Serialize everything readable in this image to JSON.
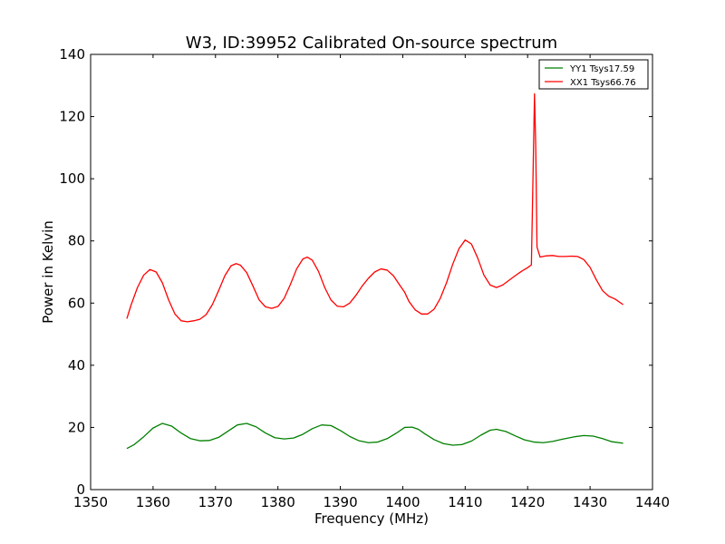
{
  "chart_data": {
    "type": "line",
    "title": "W3, ID:39952 Calibrated On-source spectrum",
    "xlabel": "Frequency (MHz)",
    "ylabel": "Power in Kelvin",
    "xlim": [
      1350,
      1440
    ],
    "ylim": [
      0,
      140
    ],
    "xticks": [
      1350,
      1360,
      1370,
      1380,
      1390,
      1400,
      1410,
      1420,
      1430,
      1440
    ],
    "yticks": [
      0,
      20,
      40,
      60,
      80,
      100,
      120,
      140
    ],
    "grid": false,
    "legend_position": "top-right",
    "series": [
      {
        "name": "YY1 Tsys17.59",
        "color": "#008000",
        "points": [
          [
            1355.8,
            13.2
          ],
          [
            1357.0,
            14.5
          ],
          [
            1358.5,
            17.0
          ],
          [
            1360.0,
            19.8
          ],
          [
            1361.5,
            21.3
          ],
          [
            1363.0,
            20.4
          ],
          [
            1364.5,
            18.2
          ],
          [
            1366.0,
            16.4
          ],
          [
            1367.5,
            15.7
          ],
          [
            1369.0,
            15.8
          ],
          [
            1370.5,
            16.8
          ],
          [
            1372.0,
            18.8
          ],
          [
            1373.5,
            20.8
          ],
          [
            1375.0,
            21.3
          ],
          [
            1376.5,
            20.2
          ],
          [
            1378.0,
            18.2
          ],
          [
            1379.5,
            16.7
          ],
          [
            1381.0,
            16.3
          ],
          [
            1382.5,
            16.6
          ],
          [
            1384.0,
            17.8
          ],
          [
            1385.5,
            19.6
          ],
          [
            1387.0,
            20.8
          ],
          [
            1388.5,
            20.6
          ],
          [
            1390.0,
            19.0
          ],
          [
            1391.5,
            17.1
          ],
          [
            1393.0,
            15.7
          ],
          [
            1394.5,
            15.1
          ],
          [
            1396.0,
            15.3
          ],
          [
            1397.5,
            16.4
          ],
          [
            1399.0,
            18.2
          ],
          [
            1400.3,
            20.0
          ],
          [
            1401.5,
            20.1
          ],
          [
            1402.5,
            19.4
          ],
          [
            1403.5,
            18.0
          ],
          [
            1405.0,
            16.1
          ],
          [
            1406.5,
            14.8
          ],
          [
            1408.0,
            14.3
          ],
          [
            1409.5,
            14.5
          ],
          [
            1411.0,
            15.6
          ],
          [
            1412.5,
            17.5
          ],
          [
            1414.0,
            19.1
          ],
          [
            1415.0,
            19.4
          ],
          [
            1416.5,
            18.7
          ],
          [
            1418.0,
            17.3
          ],
          [
            1419.5,
            16.0
          ],
          [
            1421.0,
            15.3
          ],
          [
            1422.5,
            15.1
          ],
          [
            1424.0,
            15.5
          ],
          [
            1425.5,
            16.2
          ],
          [
            1426.5,
            16.6
          ],
          [
            1427.5,
            17.0
          ],
          [
            1429.0,
            17.4
          ],
          [
            1430.5,
            17.2
          ],
          [
            1432.0,
            16.4
          ],
          [
            1433.5,
            15.4
          ],
          [
            1435.3,
            14.9
          ]
        ]
      },
      {
        "name": "XX1 Tsys66.76",
        "color": "#ff0000",
        "points": [
          [
            1355.8,
            55.0
          ],
          [
            1356.5,
            59.5
          ],
          [
            1357.5,
            65.0
          ],
          [
            1358.5,
            69.0
          ],
          [
            1359.5,
            70.8
          ],
          [
            1360.5,
            70.0
          ],
          [
            1361.5,
            66.5
          ],
          [
            1362.5,
            61.0
          ],
          [
            1363.5,
            56.5
          ],
          [
            1364.5,
            54.3
          ],
          [
            1365.5,
            54.0
          ],
          [
            1366.5,
            54.3
          ],
          [
            1367.5,
            54.8
          ],
          [
            1368.5,
            56.3
          ],
          [
            1369.5,
            59.5
          ],
          [
            1370.5,
            64.0
          ],
          [
            1371.5,
            68.8
          ],
          [
            1372.5,
            72.0
          ],
          [
            1373.3,
            72.7
          ],
          [
            1374.0,
            72.2
          ],
          [
            1375.0,
            69.8
          ],
          [
            1376.0,
            65.5
          ],
          [
            1377.0,
            61.0
          ],
          [
            1378.0,
            58.8
          ],
          [
            1379.0,
            58.3
          ],
          [
            1380.0,
            58.9
          ],
          [
            1381.0,
            61.5
          ],
          [
            1382.0,
            66.0
          ],
          [
            1383.0,
            71.0
          ],
          [
            1384.0,
            74.2
          ],
          [
            1384.7,
            74.8
          ],
          [
            1385.5,
            73.8
          ],
          [
            1386.5,
            70.2
          ],
          [
            1387.5,
            65.0
          ],
          [
            1388.5,
            61.0
          ],
          [
            1389.5,
            59.0
          ],
          [
            1390.5,
            58.8
          ],
          [
            1391.5,
            60.0
          ],
          [
            1392.5,
            62.5
          ],
          [
            1393.5,
            65.5
          ],
          [
            1394.5,
            68.0
          ],
          [
            1395.5,
            70.0
          ],
          [
            1396.5,
            71.0
          ],
          [
            1397.5,
            70.6
          ],
          [
            1398.5,
            68.8
          ],
          [
            1399.5,
            65.8
          ],
          [
            1400.3,
            63.5
          ],
          [
            1401.0,
            60.5
          ],
          [
            1402.0,
            57.8
          ],
          [
            1403.0,
            56.5
          ],
          [
            1404.0,
            56.5
          ],
          [
            1405.0,
            58.0
          ],
          [
            1406.0,
            61.5
          ],
          [
            1407.0,
            66.5
          ],
          [
            1408.0,
            72.5
          ],
          [
            1409.0,
            77.5
          ],
          [
            1410.0,
            80.3
          ],
          [
            1411.0,
            79.0
          ],
          [
            1412.0,
            74.5
          ],
          [
            1413.0,
            69.0
          ],
          [
            1414.0,
            65.8
          ],
          [
            1415.0,
            65.0
          ],
          [
            1416.0,
            65.8
          ],
          [
            1417.0,
            67.3
          ],
          [
            1418.0,
            68.8
          ],
          [
            1419.0,
            70.2
          ],
          [
            1420.0,
            71.4
          ],
          [
            1420.6,
            72.3
          ],
          [
            1420.9,
            105.0
          ],
          [
            1421.1,
            127.3
          ],
          [
            1421.3,
            110.0
          ],
          [
            1421.5,
            78.0
          ],
          [
            1422.0,
            74.8
          ],
          [
            1423.0,
            75.2
          ],
          [
            1424.0,
            75.3
          ],
          [
            1425.0,
            75.0
          ],
          [
            1426.0,
            75.0
          ],
          [
            1427.0,
            75.1
          ],
          [
            1428.0,
            75.0
          ],
          [
            1429.0,
            74.0
          ],
          [
            1430.0,
            71.5
          ],
          [
            1431.0,
            67.5
          ],
          [
            1432.0,
            64.0
          ],
          [
            1433.0,
            62.2
          ],
          [
            1434.0,
            61.3
          ],
          [
            1435.3,
            59.5
          ]
        ]
      }
    ]
  }
}
